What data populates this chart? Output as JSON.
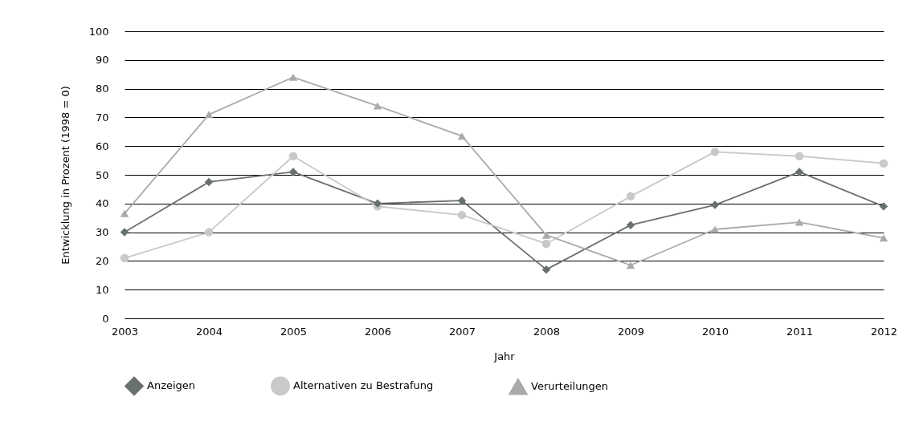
{
  "chart_data": {
    "type": "line",
    "xlabel": "Jahr",
    "ylabel": "Entwicklung in Prozent (1998 = 0)",
    "categories": [
      "2003",
      "2004",
      "2005",
      "2006",
      "2007",
      "2008",
      "2009",
      "2010",
      "2011",
      "2012"
    ],
    "series": [
      {
        "name": "Anzeigen",
        "color": "#69716d",
        "marker": "diamond",
        "values": [
          30,
          47.5,
          51,
          40,
          41,
          17,
          32.5,
          39.5,
          51,
          39
        ]
      },
      {
        "name": "Alternativen zu Bestrafung",
        "color": "#c9c9c9",
        "marker": "circle",
        "values": [
          21,
          30,
          56.5,
          39,
          36,
          26,
          42.5,
          58,
          56.5,
          54
        ]
      },
      {
        "name": "Verurteilungen",
        "color": "#a9abaa",
        "marker": "triangle",
        "values": [
          36.5,
          71,
          84,
          74,
          63.5,
          29,
          18.5,
          31,
          33.5,
          28
        ]
      }
    ],
    "ylim": [
      0,
      100
    ],
    "yticks": [
      0,
      10,
      20,
      30,
      40,
      50,
      60,
      70,
      80,
      90,
      100
    ],
    "grid": "y",
    "legend": "bottom"
  }
}
